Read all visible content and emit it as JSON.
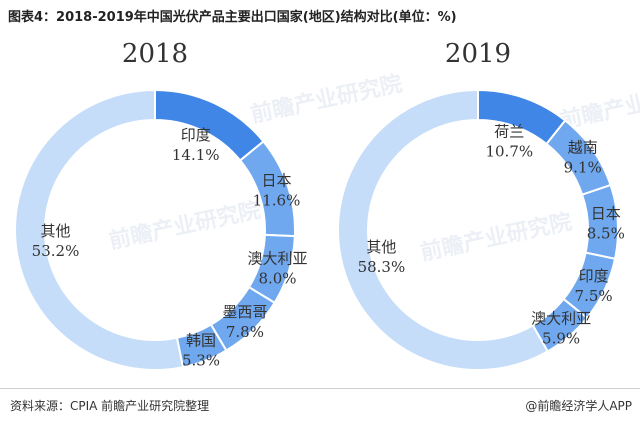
{
  "title": "图表4：2018-2019年中国光伏产品主要出口国家(地区)结构对比(单位：%)",
  "source": "资料来源：CPIA 前瞻产业研究院整理",
  "brand": "@前瞻经济学人APP",
  "watermark": "前瞻产业研究院",
  "colors": {
    "main": "#3F86E6",
    "mid": "#6FA8EE",
    "light": "#C5DDF8"
  },
  "chart_data": [
    {
      "type": "pie",
      "donut": true,
      "title": "2018",
      "categories": [
        "印度",
        "日本",
        "澳大利亚",
        "墨西哥",
        "韩国",
        "其他"
      ],
      "values": [
        14.1,
        11.6,
        8.0,
        7.8,
        5.3,
        53.2
      ],
      "value_labels": [
        "14.1%",
        "11.6%",
        "8.0%",
        "7.8%",
        "5.3%",
        "53.2%"
      ]
    },
    {
      "type": "pie",
      "donut": true,
      "title": "2019",
      "categories": [
        "荷兰",
        "越南",
        "日本",
        "印度",
        "澳大利亚",
        "其他"
      ],
      "values": [
        10.7,
        9.1,
        8.5,
        7.5,
        5.9,
        58.3
      ],
      "value_labels": [
        "10.7%",
        "9.1%",
        "8.5%",
        "7.5%",
        "5.9%",
        "58.3%"
      ]
    }
  ]
}
